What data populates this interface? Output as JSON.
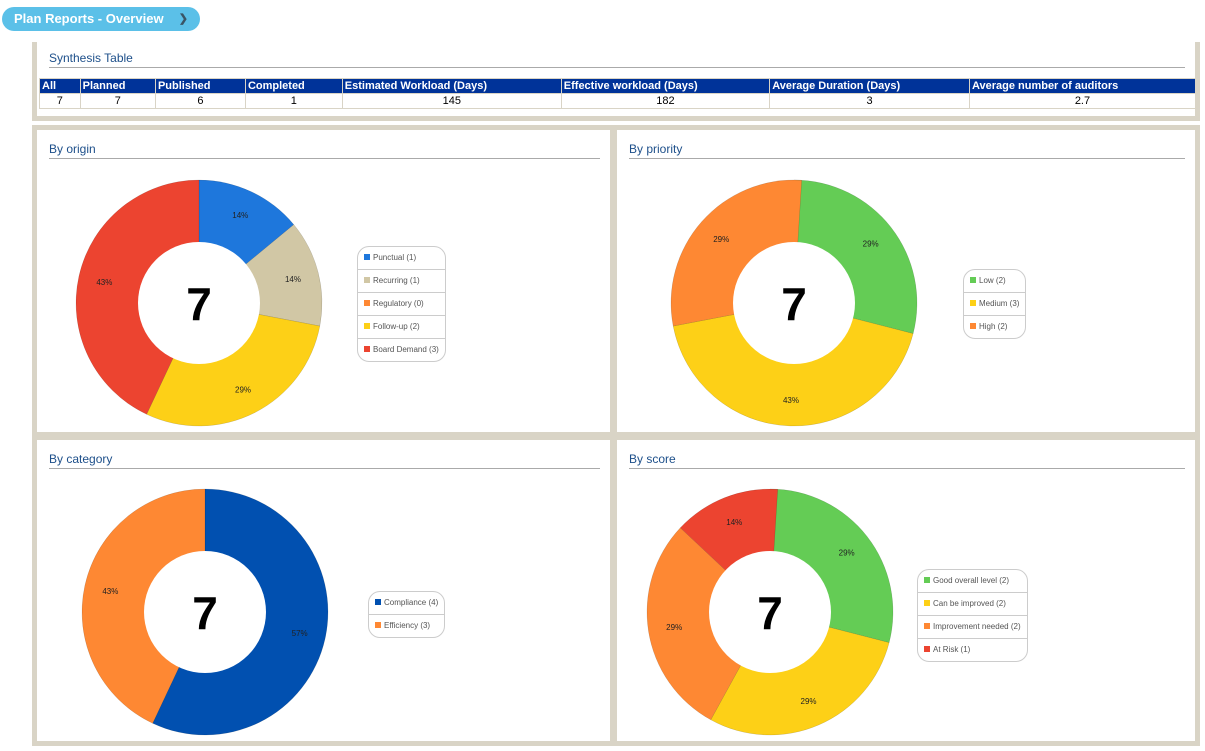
{
  "header": {
    "title": "Plan Reports - Overview"
  },
  "synthesis": {
    "title": "Synthesis Table",
    "columns": [
      "All",
      "Planned",
      "Published",
      "Completed",
      "Estimated Workload (Days)",
      "Effective workload (Days)",
      "Average Duration (Days)",
      "Average number of auditors"
    ],
    "row": [
      "7",
      "7",
      "6",
      "1",
      "145",
      "182",
      "3",
      "2.7"
    ]
  },
  "charts": [
    {
      "title": "By origin",
      "total": "7",
      "slices": [
        {
          "label": "Punctual (1)",
          "pct": 14,
          "pct_label": "14%",
          "color": "#1e77dc"
        },
        {
          "label": "Recurring (1)",
          "pct": 14,
          "pct_label": "14%",
          "color": "#d1c7a5"
        },
        {
          "label": "Regulatory (0)",
          "pct": 0,
          "pct_label": "",
          "color": "#fe8833"
        },
        {
          "label": "Follow-up (2)",
          "pct": 29,
          "pct_label": "29%",
          "color": "#fdd017"
        },
        {
          "label": "Board Demand (3)",
          "pct": 43,
          "pct_label": "43%",
          "color": "#ec4430"
        }
      ]
    },
    {
      "title": "By priority",
      "total": "7",
      "slices": [
        {
          "label": "Low (2)",
          "pct": 29,
          "pct_label": "29%",
          "color": "#64cc55"
        },
        {
          "label": "Medium (3)",
          "pct": 43,
          "pct_label": "43%",
          "color": "#fdd017"
        },
        {
          "label": "High (2)",
          "pct": 29,
          "pct_label": "29%",
          "color": "#fe8833"
        }
      ]
    },
    {
      "title": "By category",
      "total": "7",
      "slices": [
        {
          "label": "Compliance (4)",
          "pct": 57,
          "pct_label": "57%",
          "color": "#0150b0"
        },
        {
          "label": "Efficiency (3)",
          "pct": 43,
          "pct_label": "43%",
          "color": "#fe8833"
        }
      ]
    },
    {
      "title": "By score",
      "total": "7",
      "slices": [
        {
          "label": "Good overall level (2)",
          "pct": 29,
          "pct_label": "29%",
          "color": "#64cc55"
        },
        {
          "label": "Can be improved (2)",
          "pct": 29,
          "pct_label": "29%",
          "color": "#fdd017"
        },
        {
          "label": "Improvement needed (2)",
          "pct": 29,
          "pct_label": "29%",
          "color": "#fe8833"
        },
        {
          "label": "At Risk (1)",
          "pct": 14,
          "pct_label": "14%",
          "color": "#ec4430"
        }
      ]
    }
  ]
}
